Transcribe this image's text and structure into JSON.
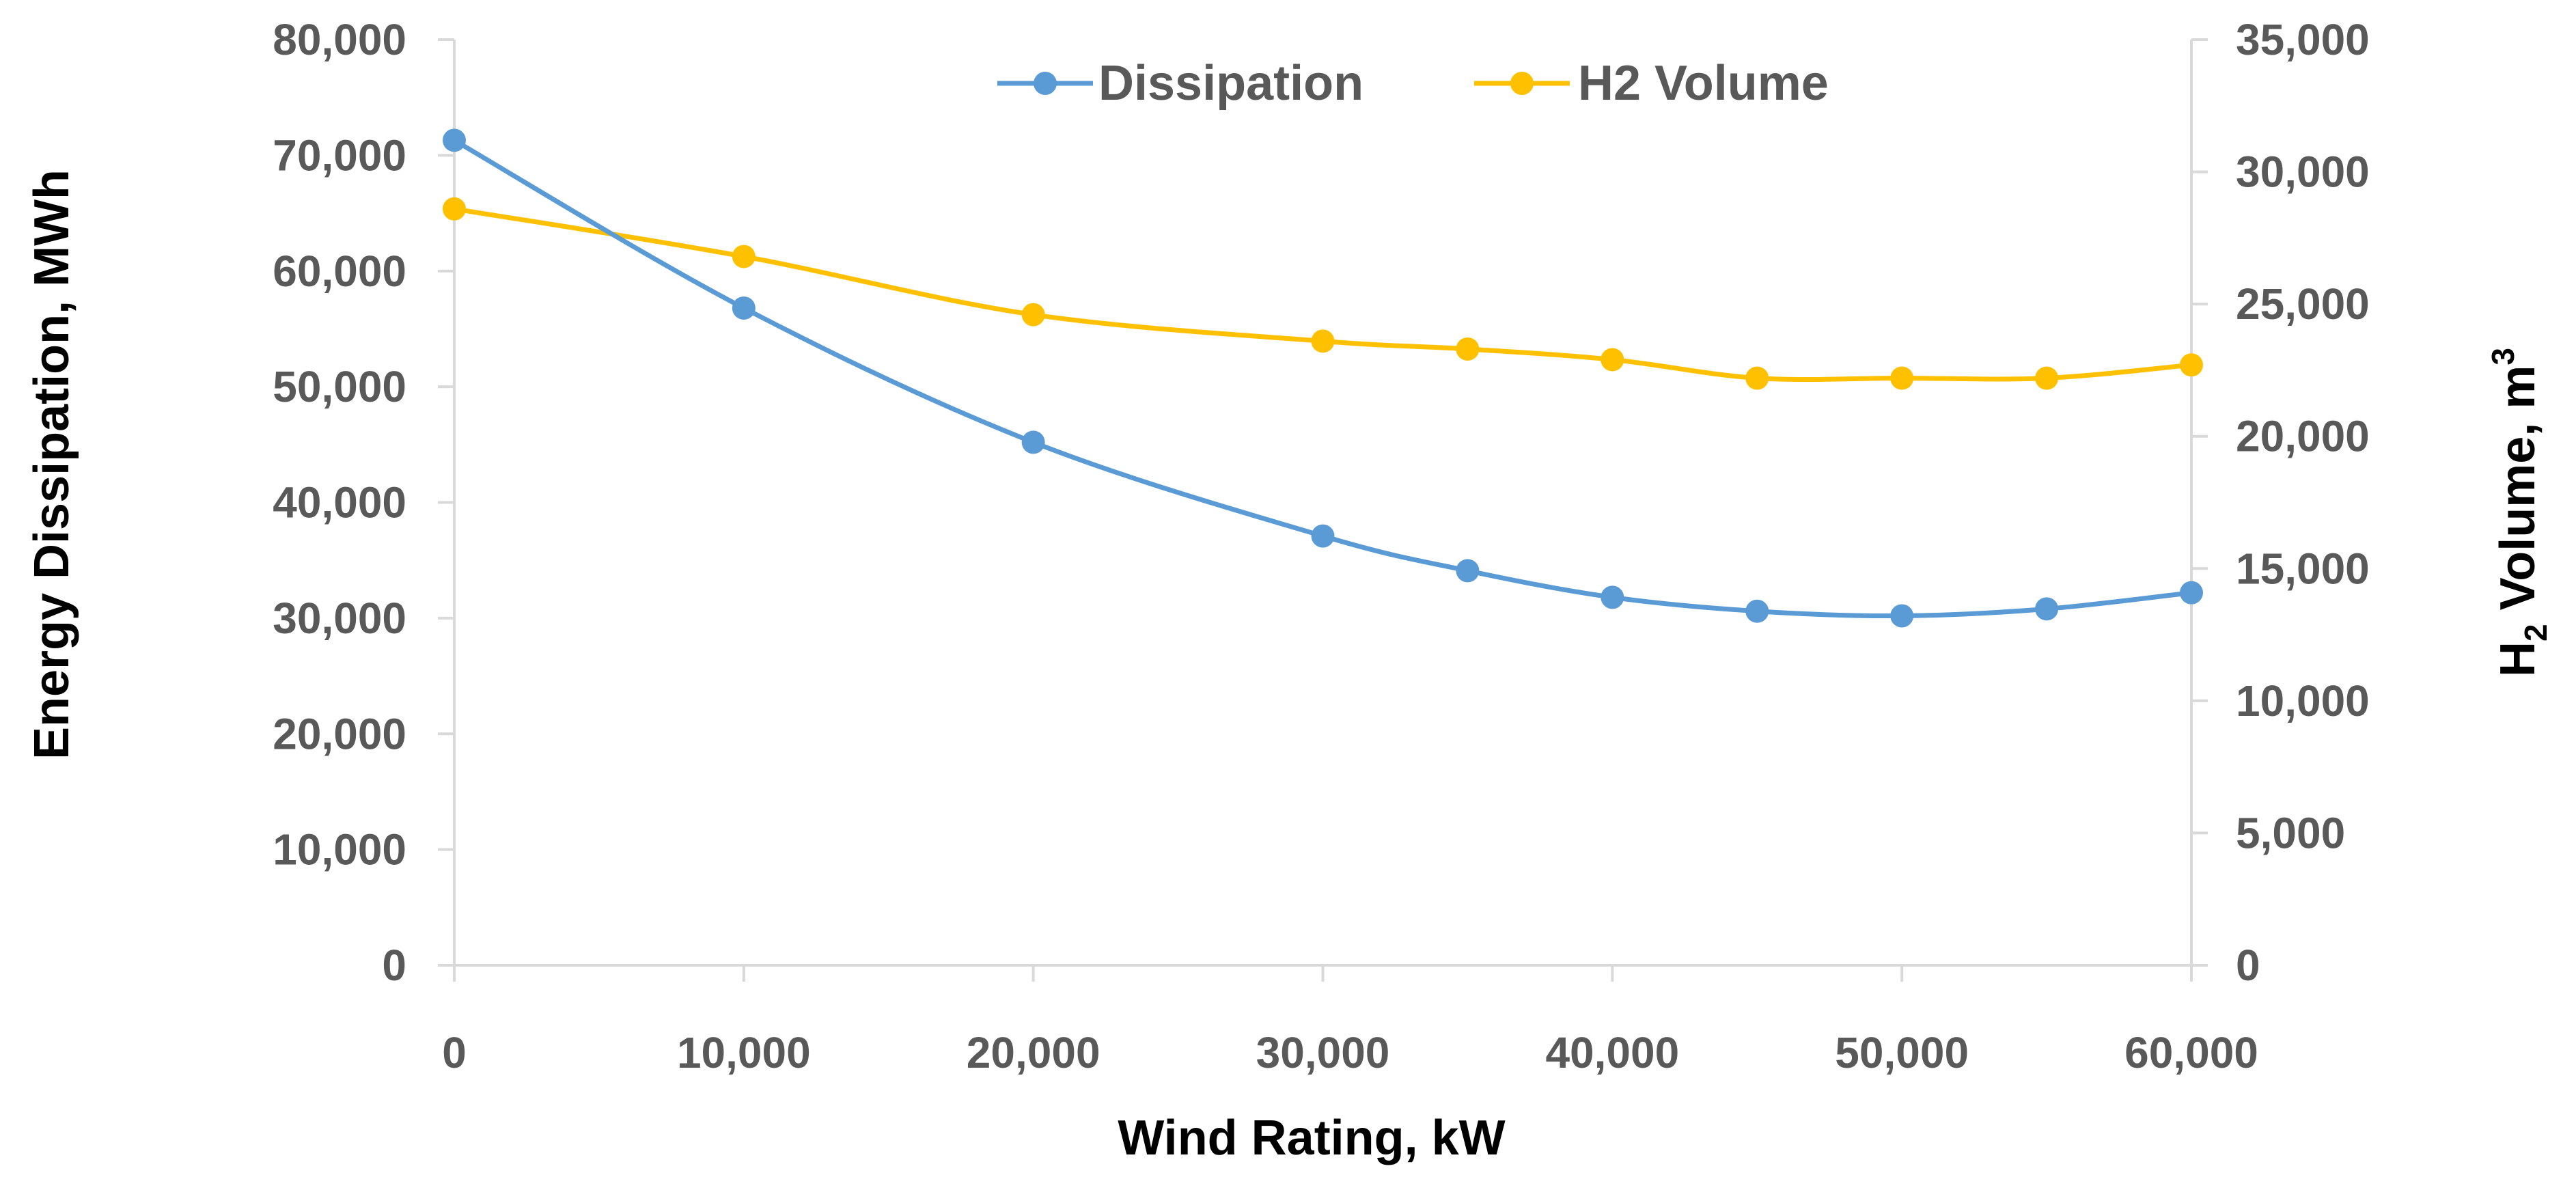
{
  "chart_data": {
    "type": "line",
    "title": "",
    "xlabel": "Wind Rating, kW",
    "ylabel": "Energy Dissipation, MWh",
    "y2label_main": "H",
    "y2label_sub": "2",
    "y2label_rest": " Volume, m",
    "y2label_sup": "3",
    "xlim": [
      0,
      60000
    ],
    "ylim": [
      0,
      80000
    ],
    "y2lim": [
      0,
      35000
    ],
    "x_ticks": [
      "0",
      "10,000",
      "20,000",
      "30,000",
      "40,000",
      "50,000",
      "60,000"
    ],
    "y_ticks": [
      "0",
      "10,000",
      "20,000",
      "30,000",
      "40,000",
      "50,000",
      "60,000",
      "70,000",
      "80,000"
    ],
    "y2_ticks": [
      "0",
      "5,000",
      "10,000",
      "15,000",
      "20,000",
      "25,000",
      "30,000",
      "35,000"
    ],
    "legend_position": "top-center",
    "x": [
      0,
      10000,
      20000,
      30000,
      35000,
      40000,
      45000,
      50000,
      55000,
      60000
    ],
    "series": [
      {
        "name": "Dissipation",
        "axis": "left",
        "color": "#5B9BD5",
        "values": [
          71300,
          56800,
          45200,
          37100,
          34100,
          31800,
          30600,
          30200,
          30800,
          32200
        ]
      },
      {
        "name": "H2 Volume",
        "axis": "right",
        "color": "#FFC000",
        "values": [
          28600,
          26800,
          24600,
          23600,
          23300,
          22900,
          22200,
          22200,
          22200,
          22700
        ]
      }
    ]
  }
}
